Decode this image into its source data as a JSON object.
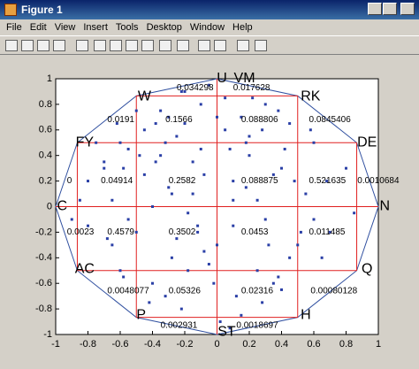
{
  "window": {
    "title": "Figure 1",
    "menu": [
      "File",
      "Edit",
      "View",
      "Insert",
      "Tools",
      "Desktop",
      "Window",
      "Help"
    ]
  },
  "chart_data": {
    "type": "scatter",
    "xlim": [
      -1,
      1
    ],
    "ylim": [
      -1,
      1
    ],
    "xticks": [
      -1,
      -0.8,
      -0.6,
      -0.4,
      -0.2,
      0,
      0.2,
      0.4,
      0.6,
      0.8,
      1
    ],
    "yticks": [
      -1,
      -0.8,
      -0.6,
      -0.4,
      -0.2,
      0,
      0.2,
      0.4,
      0.6,
      0.8,
      1
    ],
    "series": [
      {
        "color": "#2a3fa6",
        "x": [
          -0.1,
          0.05,
          -0.3,
          0.2,
          -0.6,
          0.4,
          -0.2,
          0.1,
          -0.45,
          0.3,
          -0.7,
          0.6,
          -0.15,
          0.0,
          -0.35,
          0.25,
          -0.8,
          0.7,
          -0.05,
          0.15,
          -0.55,
          0.45,
          -0.25,
          0.35,
          -0.65,
          0.55,
          -0.4,
          0.08,
          -0.12,
          0.22,
          -0.9,
          0.8,
          -0.18,
          0.12,
          -0.5,
          0.48,
          -0.28,
          0.28,
          -0.75,
          0.65,
          -0.02,
          0.02,
          -0.38,
          0.18,
          -0.62,
          0.52,
          -0.22,
          0.38,
          -0.85,
          0.85,
          -0.08,
          0.1,
          -0.32,
          0.32,
          -0.58,
          0.58,
          -0.42,
          0.42,
          -0.68,
          0.68,
          -0.2,
          -0.1,
          -0.3,
          0.05,
          -0.15,
          -0.25,
          0.2,
          -0.05,
          -0.35,
          0.1,
          -0.45,
          0.3,
          -0.55,
          0.4,
          -0.65,
          0.15,
          -0.12,
          -0.22,
          0.25,
          -0.32,
          0.0,
          -0.4,
          0.35,
          -0.5,
          0.45,
          -0.6,
          0.5,
          -0.7,
          0.6,
          -0.8,
          -0.18,
          -0.08,
          0.08,
          -0.28,
          0.18,
          -0.38,
          0.28,
          -0.48,
          0.38,
          -0.58
        ],
        "y": [
          0.8,
          0.6,
          0.7,
          0.4,
          0.5,
          0.3,
          0.9,
          0.2,
          0.6,
          -0.1,
          0.3,
          0.5,
          0.1,
          -0.3,
          0.4,
          -0.5,
          0.2,
          -0.2,
          0.95,
          0.7,
          -0.1,
          -0.4,
          0.55,
          -0.6,
          -0.3,
          0.1,
          0.0,
          0.45,
          -0.2,
          0.85,
          -0.1,
          0.3,
          -0.5,
          -0.7,
          0.75,
          0.2,
          -0.4,
          0.6,
          0.5,
          -0.4,
          -0.6,
          -0.9,
          0.35,
          0.15,
          0.65,
          -0.2,
          -0.8,
          0.75,
          0.05,
          -0.05,
          0.25,
          -0.15,
          -0.7,
          -0.3,
          -0.55,
          0.6,
          -0.75,
          0.45,
          -0.25,
          0.2,
          0.65,
          0.45,
          0.15,
          0.85,
          0.35,
          -0.25,
          0.55,
          -0.45,
          0.75,
          0.05,
          0.25,
          0.8,
          0.45,
          -0.65,
          0.05,
          -0.85,
          -0.15,
          0.9,
          0.05,
          0.5,
          0.7,
          -0.6,
          0.25,
          -0.2,
          0.65,
          -0.5,
          -0.3,
          0.35,
          -0.1,
          -0.15,
          -0.05,
          -0.35,
          -0.95,
          0.1,
          0.5,
          0.65,
          -0.75,
          0.4,
          -0.55,
          0.3
        ]
      }
    ],
    "region_labels": [
      "U",
      "VM",
      "RK",
      "W",
      "FY",
      "DE",
      "C",
      "N",
      "AC",
      "Q",
      "P",
      "H",
      "ST"
    ],
    "annotations": [
      "0.034298",
      "0.017628",
      "0.0191",
      "0.1566",
      "0.088806",
      "0.0845406",
      "0",
      "0.04914",
      "0.2582",
      "0.088875",
      "0.521635",
      "0.0010684",
      "0.0023",
      "0.4579",
      "0.3502",
      "0.0453",
      "0.011485",
      "0.0048077",
      "0.05326",
      "0.02316",
      "0.00080128",
      "0.002931",
      "0.0018697"
    ]
  }
}
